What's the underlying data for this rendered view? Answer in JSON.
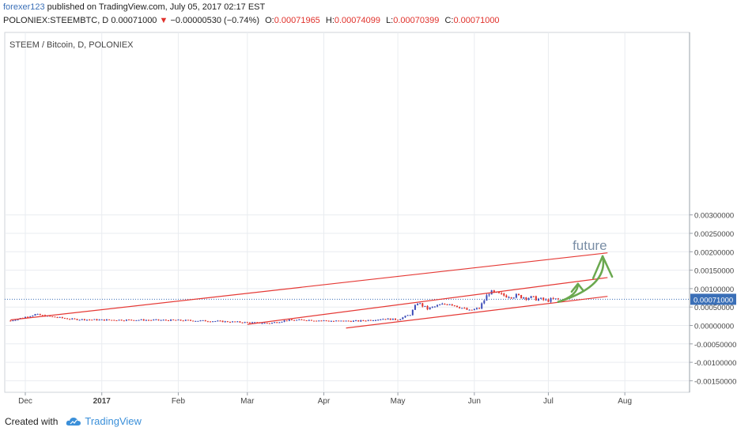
{
  "header": {
    "user": "forexer123",
    "published": " published on TradingView.com, July 05, 2017 02:17 EST",
    "symbol": "POLONIEX:STEEMBTC, D",
    "last": "0.00071000",
    "change_arrow": "▼",
    "change": "−0.00000530 (−0.74%)",
    "o_label": "O:",
    "o_value": "0.00071965",
    "h_label": "H:",
    "h_value": "0.00074099",
    "l_label": "L:",
    "l_value": "0.00070399",
    "c_label": "C:",
    "c_value": "0.00071000"
  },
  "footer": {
    "created": "Created with",
    "brand": "TradingView",
    "logo_icon": "tradingview-cloud-icon"
  },
  "colors": {
    "up": "#3b4bb8",
    "down": "#e0312b",
    "channel": "#e53935",
    "arrow": "#6aa84f",
    "price_line": "#3a6fb7"
  },
  "chart_data": {
    "type": "candlestick",
    "title": "STEEM / Bitcoin, D, POLONIEX",
    "x_ticks": [
      "Dec",
      "2017",
      "Feb",
      "Mar",
      "Apr",
      "May",
      "Jun",
      "Jul",
      "Aug"
    ],
    "y_ticks": [
      "0.00300000",
      "0.00250000",
      "0.00200000",
      "0.00150000",
      "0.00100000",
      "0.00050000",
      "0.00000000",
      "-0.00050000",
      "-0.00100000",
      "-0.00150000"
    ],
    "ylim": [
      -0.0017,
      0.003
    ],
    "current_price": 0.00071,
    "current_price_label": "0.00071000",
    "annotation": "future",
    "grid": true,
    "series_close": [
      {
        "date": "2016-11-25",
        "close": 0.00013
      },
      {
        "date": "2016-12-01",
        "close": 0.00023
      },
      {
        "date": "2016-12-05",
        "close": 0.0003
      },
      {
        "date": "2016-12-10",
        "close": 0.00025
      },
      {
        "date": "2016-12-20",
        "close": 0.00017
      },
      {
        "date": "2017-01-01",
        "close": 0.00015
      },
      {
        "date": "2017-01-15",
        "close": 0.00015
      },
      {
        "date": "2017-02-01",
        "close": 0.00014
      },
      {
        "date": "2017-02-15",
        "close": 0.00012
      },
      {
        "date": "2017-03-01",
        "close": 8e-05
      },
      {
        "date": "2017-03-10",
        "close": 6e-05
      },
      {
        "date": "2017-03-17",
        "close": 0.00014
      },
      {
        "date": "2017-03-25",
        "close": 0.00015
      },
      {
        "date": "2017-04-05",
        "close": 0.00012
      },
      {
        "date": "2017-04-15",
        "close": 0.00012
      },
      {
        "date": "2017-04-25",
        "close": 0.00018
      },
      {
        "date": "2017-05-01",
        "close": 0.00016
      },
      {
        "date": "2017-05-06",
        "close": 0.0003
      },
      {
        "date": "2017-05-09",
        "close": 0.00062
      },
      {
        "date": "2017-05-13",
        "close": 0.00045
      },
      {
        "date": "2017-05-18",
        "close": 0.00055
      },
      {
        "date": "2017-05-22",
        "close": 0.0006
      },
      {
        "date": "2017-05-26",
        "close": 0.0005
      },
      {
        "date": "2017-05-30",
        "close": 0.0004
      },
      {
        "date": "2017-06-03",
        "close": 0.00047
      },
      {
        "date": "2017-06-07",
        "close": 0.0009
      },
      {
        "date": "2017-06-12",
        "close": 0.00082
      },
      {
        "date": "2017-06-18",
        "close": 0.0008
      },
      {
        "date": "2017-06-24",
        "close": 0.00075
      },
      {
        "date": "2017-06-30",
        "close": 0.00068
      },
      {
        "date": "2017-07-05",
        "close": 0.00071
      }
    ],
    "channel_lines": [
      {
        "name": "upper-long",
        "from": {
          "date": "2016-11-25",
          "price": 0.00015
        },
        "to": {
          "date": "2017-07-25",
          "price": 0.00197
        }
      },
      {
        "name": "mid-upper",
        "from": {
          "date": "2017-03-01",
          "price": 3e-05
        },
        "to": {
          "date": "2017-07-25",
          "price": 0.0013
        }
      },
      {
        "name": "mid-lower",
        "from": {
          "date": "2017-04-10",
          "price": -7e-05
        },
        "to": {
          "date": "2017-07-25",
          "price": 0.00079
        }
      }
    ]
  }
}
